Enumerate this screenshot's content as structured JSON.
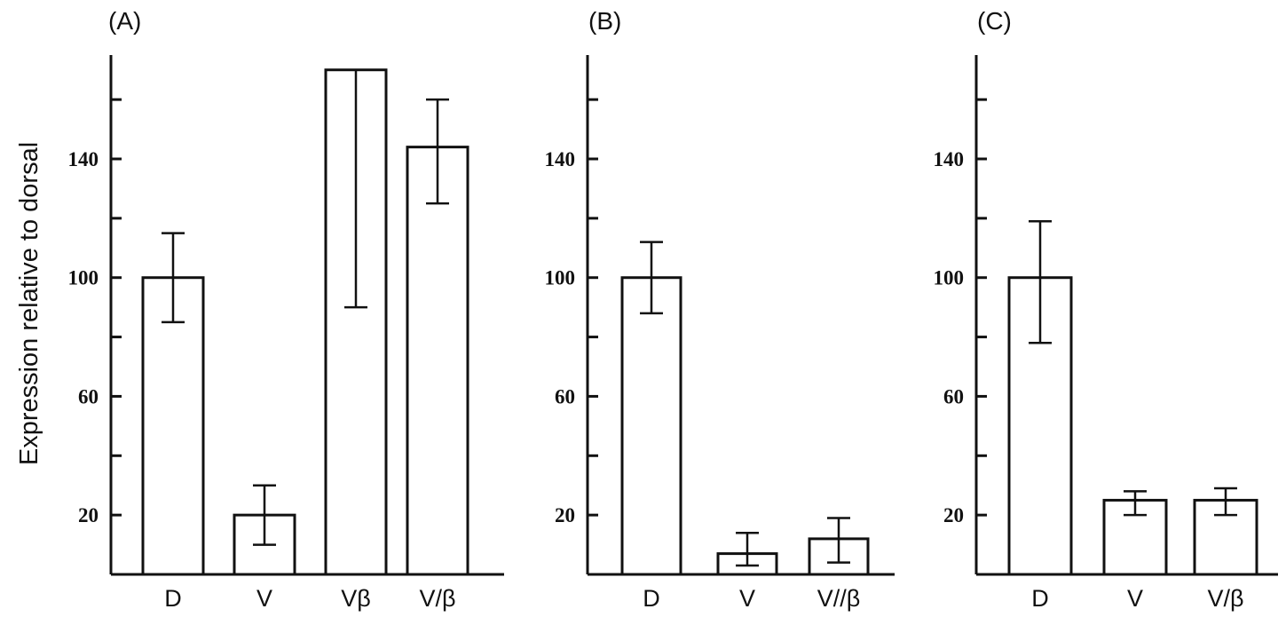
{
  "chart_data": {
    "ylabel": "Expression relative to dorsal",
    "panels": [
      {
        "type": "bar",
        "panel_label": "(A)",
        "categories": [
          "D",
          "V",
          "Vβ",
          "V/β"
        ],
        "values": [
          100,
          20,
          170,
          144
        ],
        "error_low": [
          85,
          10,
          90,
          125
        ],
        "error_high": [
          115,
          30,
          170,
          160
        ],
        "yticks": [
          20,
          60,
          100,
          140
        ],
        "ylim": [
          0,
          175
        ],
        "grid": false
      },
      {
        "type": "bar",
        "panel_label": "(B)",
        "categories": [
          "D",
          "V",
          "V//β"
        ],
        "values": [
          100,
          7,
          12
        ],
        "error_low": [
          88,
          3,
          4
        ],
        "error_high": [
          112,
          14,
          19
        ],
        "yticks": [
          20,
          60,
          100,
          140
        ],
        "ylim": [
          0,
          175
        ],
        "grid": false
      },
      {
        "type": "bar",
        "panel_label": "(C)",
        "categories": [
          "D",
          "V",
          "V/β"
        ],
        "values": [
          100,
          25,
          25
        ],
        "error_low": [
          78,
          20,
          20
        ],
        "error_high": [
          119,
          28,
          29
        ],
        "yticks": [
          20,
          60,
          100,
          140
        ],
        "ylim": [
          0,
          175
        ],
        "grid": false
      }
    ]
  }
}
